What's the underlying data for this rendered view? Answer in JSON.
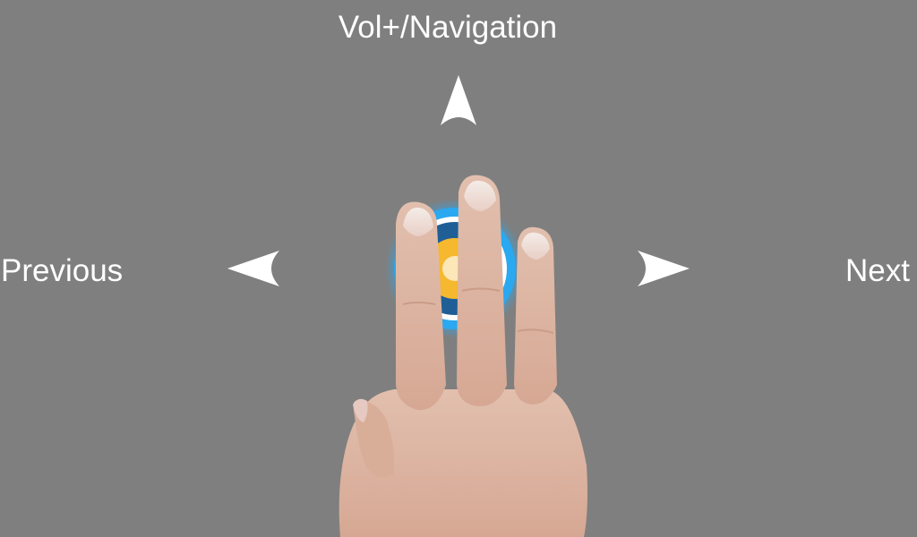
{
  "screen": {
    "background_color": "#7f7f7f"
  },
  "gesture_hint": {
    "up": {
      "label": "Vol+/Navigation",
      "icon": "arrow-up-icon"
    },
    "left": {
      "label": "Previous",
      "icon": "arrow-left-icon"
    },
    "right": {
      "label": "Next",
      "icon": "arrow-right-icon"
    },
    "illustration": {
      "icon": "three-finger-touch-icon",
      "touch_ring_colors": [
        "#2aa8f0",
        "#1f5f96",
        "#f5b82e",
        "#ffffff"
      ]
    }
  }
}
